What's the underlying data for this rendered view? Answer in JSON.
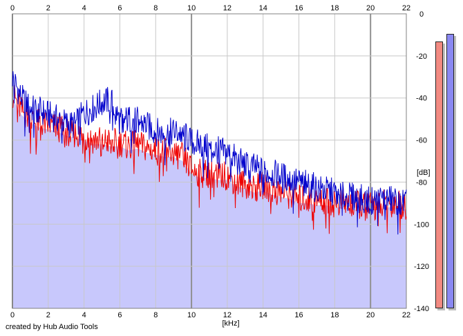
{
  "chart_data": {
    "type": "line",
    "xlabel": "[kHz]",
    "ylabel": "[dB]",
    "xlim": [
      0,
      22
    ],
    "ylim": [
      -140,
      0
    ],
    "x_ticks": [
      "0",
      "2",
      "4",
      "6",
      "8",
      "10",
      "12",
      "14",
      "16",
      "18",
      "20",
      "22"
    ],
    "y_ticks": [
      "0",
      "-20",
      "-40",
      "-60",
      "-80",
      "-100",
      "-120",
      "-140"
    ],
    "grid": true,
    "series": [
      {
        "color": "#0000cc",
        "x": [
          0,
          0.5,
          1,
          1.5,
          2,
          2.5,
          3,
          3.5,
          4,
          4.5,
          5,
          5.5,
          6,
          6.5,
          7,
          7.5,
          8,
          8.5,
          9,
          9.5,
          10,
          10.5,
          11,
          11.5,
          12,
          12.5,
          13,
          13.5,
          14,
          14.5,
          15,
          15.5,
          16,
          16.5,
          17,
          17.5,
          18,
          18.5,
          19,
          19.5,
          20,
          20.5,
          21,
          21.5,
          22
        ],
        "y": [
          -30,
          -40,
          -45,
          -46,
          -48,
          -50,
          -52,
          -53,
          -47,
          -45,
          -42,
          -41,
          -51,
          -50,
          -51,
          -53,
          -56,
          -57,
          -56,
          -57,
          -61,
          -62,
          -64,
          -65,
          -66,
          -69,
          -72,
          -73,
          -75,
          -76,
          -77,
          -79,
          -80,
          -81,
          -83,
          -84,
          -85,
          -87,
          -87,
          -88,
          -89,
          -88,
          -88,
          -89,
          -90
        ]
      },
      {
        "color": "#ee0000",
        "x": [
          0,
          0.5,
          1,
          1.5,
          2,
          2.5,
          3,
          3.5,
          4,
          4.5,
          5,
          5.5,
          6,
          6.5,
          7,
          7.5,
          8,
          8.5,
          9,
          9.5,
          10,
          10.5,
          11,
          11.5,
          12,
          12.5,
          13,
          13.5,
          14,
          14.5,
          15,
          15.5,
          16,
          16.5,
          17,
          17.5,
          18,
          18.5,
          19,
          19.5,
          20,
          20.5,
          21,
          21.5,
          22
        ],
        "y": [
          -38,
          -46,
          -50,
          -52,
          -53,
          -54,
          -56,
          -57,
          -58,
          -60,
          -60,
          -61,
          -61,
          -63,
          -62,
          -64,
          -65,
          -66,
          -66,
          -68,
          -74,
          -76,
          -76,
          -77,
          -77,
          -80,
          -81,
          -83,
          -82,
          -84,
          -85,
          -86,
          -88,
          -88,
          -89,
          -89,
          -90,
          -90,
          -91,
          -91,
          -91,
          -91,
          -90,
          -90,
          -91
        ]
      }
    ],
    "fill_color": "#c8c8fc"
  },
  "footer": {
    "credit": "created by Hub Audio Tools"
  },
  "meters": {
    "left_color": "#f28a82",
    "right_color": "#8a88f2"
  }
}
